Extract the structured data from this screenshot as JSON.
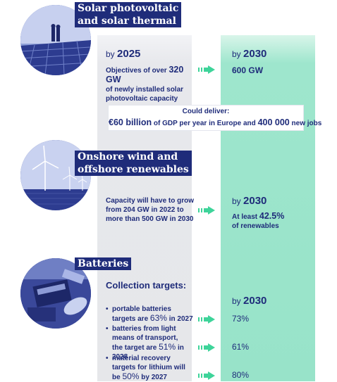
{
  "solar": {
    "title_line1": "Solar photovoltaic",
    "title_line2": "and solar thermal",
    "by_prefix": "by",
    "year_left": "2025",
    "year_right": "2030",
    "text_pre": "Objectives of over",
    "text_value": "320 GW",
    "text_post_1": "of newly installed solar",
    "text_post_2": "photovoltaic capacity",
    "target": "600 GW"
  },
  "deliver": {
    "label": "Could deliver:",
    "gdp_value": "€60 billion",
    "gdp_text": "of GDP per year in Europe and",
    "jobs_value": "400 000",
    "jobs_text": "new jobs"
  },
  "wind": {
    "title_line1": "Onshore wind and",
    "title_line2": "offshore renewables",
    "text_1": "Capacity will have to grow",
    "text_2": "from 204 GW in 2022 to",
    "text_3": "more than 500 GW in 2030",
    "by_prefix": "by",
    "year_right": "2030",
    "target_pre": "At least",
    "target_value": "42.5%",
    "target_post": "of renewables"
  },
  "batteries": {
    "title": "Batteries",
    "collection_label": "Collection targets:",
    "by_prefix": "by",
    "year_right": "2030",
    "bullet_symbol": "•",
    "item1_line1": "portable batteries",
    "item1_pre": "targets are",
    "item1_value": "63%",
    "item1_post": "in 2027",
    "item1_target": "73%",
    "item2_line1": "batteries from light",
    "item2_line2": "means of transport,",
    "item2_pre": "the target are",
    "item2_value": "51%",
    "item2_post": "in 2028",
    "item2_target": "61%",
    "item3_line1": "material recovery",
    "item3_line2": "targets for lithium will",
    "item3_pre": "be",
    "item3_value": "50%",
    "item3_post": "by 2027",
    "item3_target": "80%"
  },
  "icons": {
    "arrow": "right-arrow-icon",
    "arrow_color": "#3ed49a",
    "title_bg": "#1f2c7a",
    "gray_column": "#e6e7ea",
    "green_column": "#98e3c9"
  }
}
